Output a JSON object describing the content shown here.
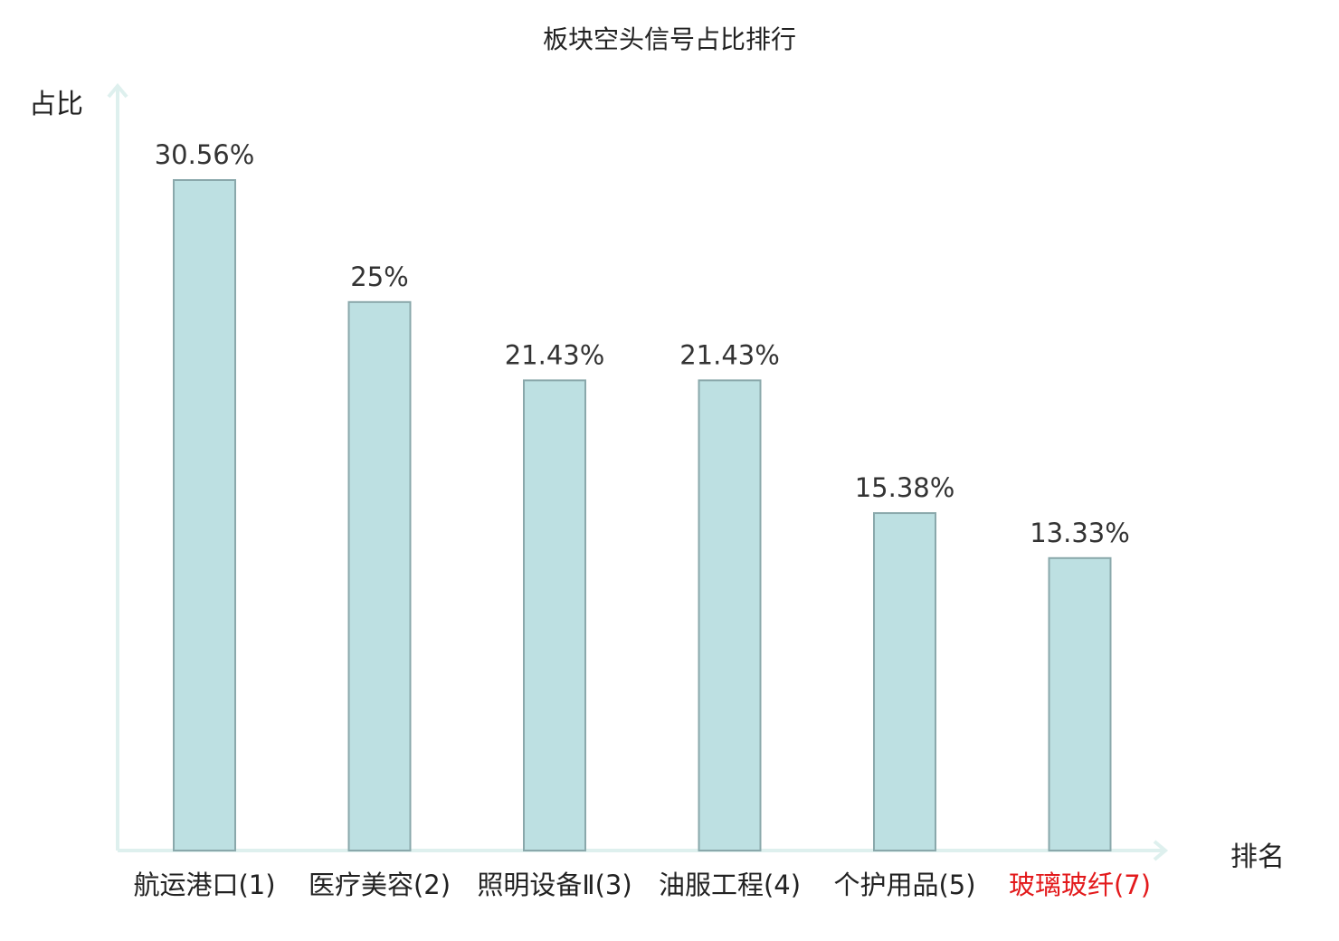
{
  "chart_data": {
    "type": "bar",
    "title": "板块空头信号占比排行",
    "ylabel": "占比",
    "xlabel": "排名",
    "categories": [
      "航运港口(1)",
      "医疗美容(2)",
      "照明设备Ⅱ(3)",
      "油服工程(4)",
      "个护用品(5)",
      "玻璃玻纤(7)"
    ],
    "values": [
      30.56,
      25,
      21.43,
      21.43,
      15.38,
      13.33
    ],
    "value_labels": [
      "30.56%",
      "25%",
      "21.43%",
      "21.43%",
      "15.38%",
      "13.33%"
    ],
    "highlight_index": 5,
    "ylim": [
      0,
      35
    ],
    "grid": false,
    "colors": {
      "bar_fill": "#bde0e2",
      "bar_stroke": "#8aa8ab",
      "axis": "#def0ee",
      "highlight_text": "#e31a1c"
    }
  }
}
